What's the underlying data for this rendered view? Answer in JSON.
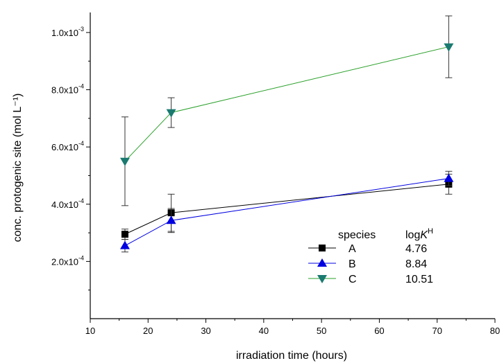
{
  "chart_data": {
    "type": "line",
    "xlabel": "irradiation time (hours)",
    "ylabel": "conc. protogenic site (mol L⁻¹)",
    "xlim": [
      10,
      80
    ],
    "ylim": [
      0,
      0.00107
    ],
    "x_ticks": [
      10,
      20,
      30,
      40,
      50,
      60,
      70,
      80
    ],
    "x_tick_labels": [
      "10",
      "20",
      "30",
      "40",
      "50",
      "60",
      "70",
      "80"
    ],
    "y_ticks": [
      0.0002,
      0.0004,
      0.0006,
      0.0008,
      0.001
    ],
    "y_tick_labels": [
      {
        "mantissa": "2.0x10",
        "exp": "-4"
      },
      {
        "mantissa": "4.0x10",
        "exp": "-4"
      },
      {
        "mantissa": "6.0x10",
        "exp": "-4"
      },
      {
        "mantissa": "8.0x10",
        "exp": "-4"
      },
      {
        "mantissa": "1.0x10",
        "exp": "-3"
      }
    ],
    "grid": false,
    "legend_position": "bottom-right",
    "legend": {
      "header_species": "species",
      "header_logk": "log",
      "header_logk_italic": "K",
      "header_logk_sup": "H"
    },
    "series": [
      {
        "name": "A",
        "logk": "4.76",
        "color": "#000000",
        "marker": "square",
        "x": [
          16,
          24,
          72
        ],
        "y": [
          0.000295,
          0.00037,
          0.00047
        ],
        "err": [
          1.8e-05,
          6.5e-05,
          3.5e-05
        ]
      },
      {
        "name": "B",
        "logk": "8.84",
        "color": "#0000e0",
        "marker": "triangle-up",
        "x": [
          16,
          24,
          72
        ],
        "y": [
          0.000255,
          0.000343,
          0.00049
        ],
        "err": [
          2.2e-05,
          4.2e-05,
          2.5e-05
        ]
      },
      {
        "name": "C",
        "logk": "10.51",
        "color": "#1a7a70",
        "line_color": "#2aa02a",
        "marker": "triangle-down",
        "x": [
          16,
          24,
          72
        ],
        "y": [
          0.00055,
          0.00072,
          0.00095
        ],
        "err": [
          0.000155,
          5.2e-05,
          0.000108
        ]
      }
    ]
  }
}
